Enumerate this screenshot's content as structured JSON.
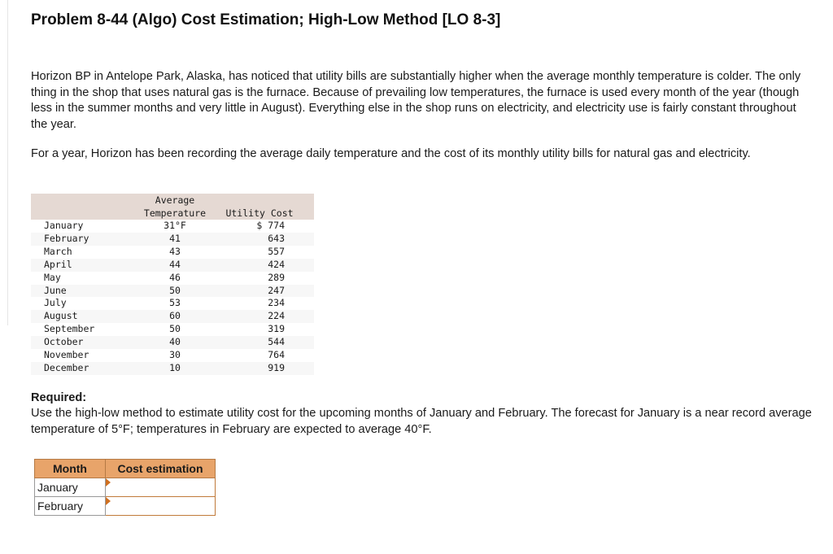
{
  "title": "Problem 8-44 (Algo) Cost Estimation; High-Low Method [LO 8-3]",
  "paragraphs": [
    "Horizon BP in Antelope Park, Alaska, has noticed that utility bills are substantially higher when the average monthly temperature is colder. The only thing in the shop that uses natural gas is the furnace. Because of prevailing low temperatures, the furnace is used every month of the year (though less in the summer months and very little in August). Everything else in the shop runs on electricity, and electricity use is fairly constant throughout the year.",
    "For a year, Horizon has been recording the average daily temperature and the cost of its monthly utility bills for natural gas and electricity."
  ],
  "data_table": {
    "headers": [
      "",
      "Average\nTemperature",
      "Utility Cost"
    ],
    "rows": [
      [
        "January",
        "31°F",
        "$ 774"
      ],
      [
        "February",
        "41",
        "643"
      ],
      [
        "March",
        "43",
        "557"
      ],
      [
        "April",
        "44",
        "424"
      ],
      [
        "May",
        "46",
        "289"
      ],
      [
        "June",
        "50",
        "247"
      ],
      [
        "July",
        "53",
        "234"
      ],
      [
        "August",
        "60",
        "224"
      ],
      [
        "September",
        "50",
        "319"
      ],
      [
        "October",
        "40",
        "544"
      ],
      [
        "November",
        "30",
        "764"
      ],
      [
        "December",
        "10",
        "919"
      ]
    ]
  },
  "required": {
    "label": "Required:",
    "text": "Use the high-low method to estimate utility cost for the upcoming months of January and February. The forecast for January is a near record average temperature of 5°F; temperatures in February are expected to average 40°F."
  },
  "answer_table": {
    "headers": [
      "Month",
      "Cost estimation"
    ],
    "rows": [
      {
        "month": "January",
        "value": ""
      },
      {
        "month": "February",
        "value": ""
      }
    ]
  },
  "colors": {
    "answer_header": "#e8a46a",
    "data_header": "#e5d9d3"
  }
}
